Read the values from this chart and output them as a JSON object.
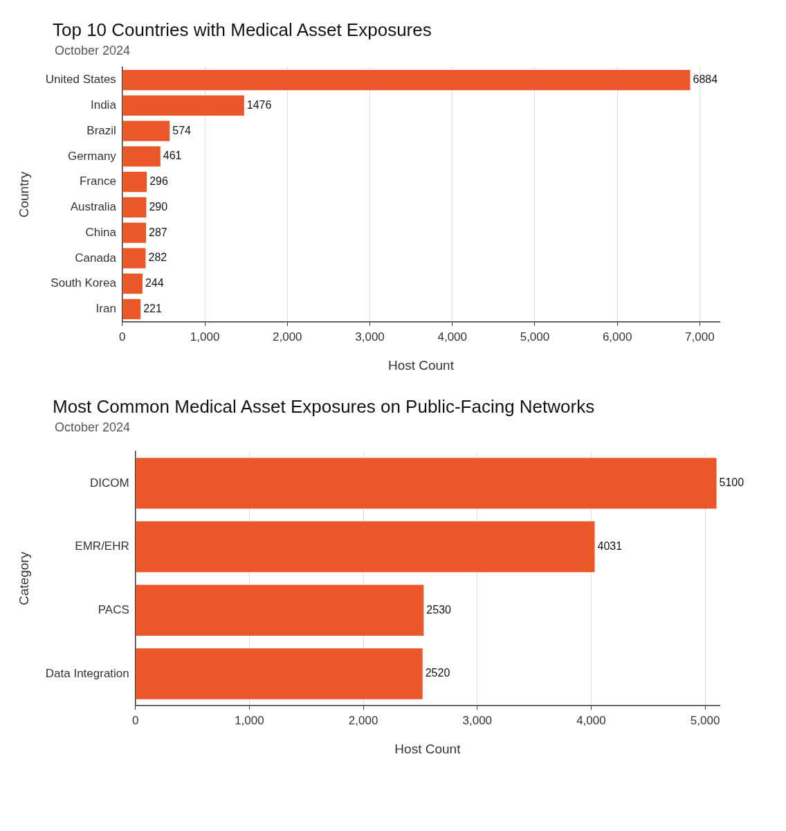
{
  "chart_data": [
    {
      "type": "bar",
      "orientation": "horizontal",
      "title": "Top 10 Countries with Medical Asset Exposures",
      "subtitle": "October 2024",
      "xlabel": "Host Count",
      "ylabel": "Country",
      "categories": [
        "United States",
        "India",
        "Brazil",
        "Germany",
        "France",
        "Australia",
        "China",
        "Canada",
        "South Korea",
        "Iran"
      ],
      "values": [
        6884,
        1476,
        574,
        461,
        296,
        290,
        287,
        282,
        244,
        221
      ],
      "color": "#ea5728",
      "xlim": [
        0,
        7240
      ],
      "xticks": [
        0,
        {
          "value": 1000,
          "label": "1,000"
        },
        {
          "value": 2000,
          "label": "2,000"
        },
        {
          "value": 3000,
          "label": "3,000"
        },
        {
          "value": 4000,
          "label": "4,000"
        },
        {
          "value": 5000,
          "label": "5,000"
        },
        {
          "value": 6000,
          "label": "6,000"
        },
        {
          "value": 7000,
          "label": "7,000"
        }
      ],
      "grid": "x",
      "data_labels": true
    },
    {
      "type": "bar",
      "orientation": "horizontal",
      "title": "Most Common Medical Asset Exposures on Public-Facing Networks",
      "subtitle": "October 2024",
      "xlabel": "Host Count",
      "ylabel": "Category",
      "categories": [
        "DICOM",
        "EMR/EHR",
        "PACS",
        "Data Integration"
      ],
      "values": [
        5100,
        4031,
        2530,
        2520
      ],
      "color": "#ea5728",
      "xlim": [
        0,
        5127
      ],
      "xticks": [
        0,
        {
          "value": 1000,
          "label": "1,000"
        },
        {
          "value": 2000,
          "label": "2,000"
        },
        {
          "value": 3000,
          "label": "3,000"
        },
        {
          "value": 4000,
          "label": "4,000"
        },
        {
          "value": 5000,
          "label": "5,000"
        }
      ],
      "grid": "x",
      "data_labels": true
    }
  ]
}
